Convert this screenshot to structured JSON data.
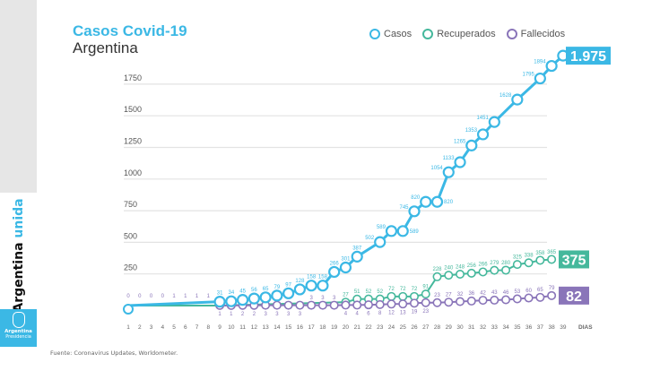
{
  "branding": {
    "slogan_part1": "Argentina",
    "slogan_part2": "unida",
    "badge_line1": "Argentina",
    "badge_line2": "Presidencia"
  },
  "source": "Fuente: Coronavirus Updates, Worldometer.",
  "colors": {
    "casos": "#3bb8e5",
    "recuperados": "#45b89c",
    "fallecidos": "#8a75b9"
  },
  "chart_data": {
    "type": "line",
    "title": "Casos Covid-19",
    "subtitle": "Argentina",
    "xlabel": "DIAS",
    "xlim": [
      1,
      39
    ],
    "ylim": [
      0,
      2000
    ],
    "yticks": [
      250,
      500,
      750,
      1000,
      1250,
      1500,
      1750
    ],
    "xticks": [
      1,
      2,
      3,
      4,
      5,
      6,
      7,
      8,
      9,
      10,
      11,
      12,
      13,
      14,
      15,
      16,
      17,
      18,
      19,
      20,
      21,
      22,
      23,
      24,
      25,
      26,
      27,
      28,
      29,
      30,
      31,
      32,
      33,
      34,
      35,
      36,
      37,
      38,
      39
    ],
    "grid": true,
    "legend": "top-right",
    "early_labels": {
      "x": [
        1,
        2,
        3,
        4,
        5,
        6,
        7,
        8
      ],
      "values": [
        0,
        0,
        0,
        0,
        1,
        1,
        1,
        1
      ]
    },
    "series": [
      {
        "name": "Casos",
        "key": "casos",
        "x": [
          1,
          9,
          10,
          11,
          12,
          13,
          14,
          15,
          16,
          17,
          18,
          19,
          20,
          21,
          23,
          24,
          25,
          26,
          27,
          28,
          29,
          30,
          31,
          32,
          33,
          35,
          37,
          38,
          39
        ],
        "y": [
          0,
          31,
          34,
          45,
          56,
          65,
          79,
          97,
          128,
          158,
          158,
          266,
          301,
          387,
          502,
          589,
          589,
          745,
          820,
          820,
          1054,
          1133,
          1265,
          1353,
          1451,
          1628,
          1795,
          1894,
          1975
        ],
        "labels": [
          "",
          "31",
          "34",
          "45",
          "56",
          "65",
          "79",
          "97",
          "128",
          "158",
          "158",
          "266",
          "301",
          "387",
          "502",
          "589",
          "589",
          "745",
          "820",
          "820",
          "1054",
          "1133",
          "1265",
          "1353",
          "1451",
          "1628",
          "1795",
          "1894",
          ""
        ],
        "final_value": "1.975"
      },
      {
        "name": "Recuperados",
        "key": "recuperados",
        "x": [
          1,
          9,
          20,
          21,
          22,
          23,
          24,
          25,
          26,
          27,
          28,
          29,
          30,
          31,
          32,
          33,
          34,
          35,
          36,
          37,
          38
        ],
        "y": [
          0,
          0,
          27,
          51,
          52,
          52,
          72,
          72,
          72,
          91,
          228,
          240,
          248,
          256,
          266,
          279,
          280,
          325,
          338,
          358,
          365
        ],
        "labels": [
          "",
          "",
          "27",
          "51",
          "52",
          "52",
          "72",
          "72",
          "72",
          "91",
          "228",
          "240",
          "248",
          "256",
          "266",
          "279",
          "280",
          "325",
          "338",
          "358",
          "365"
        ],
        "final_value": "375"
      },
      {
        "name": "Fallecidos",
        "key": "fallecidos",
        "x": [
          9,
          10,
          11,
          12,
          13,
          14,
          15,
          16,
          17,
          18,
          19,
          20,
          21,
          22,
          23,
          24,
          25,
          26,
          27,
          28,
          29,
          30,
          31,
          32,
          33,
          34,
          35,
          36,
          37,
          38
        ],
        "y": [
          1,
          1,
          2,
          2,
          3,
          3,
          3,
          3,
          3,
          3,
          3,
          4,
          4,
          6,
          8,
          12,
          13,
          19,
          23,
          23,
          27,
          32,
          36,
          42,
          43,
          46,
          53,
          60,
          65,
          79
        ],
        "labels": [
          "1",
          "1",
          "2",
          "2",
          "3",
          "3",
          "3",
          "3",
          "3",
          "3",
          "3",
          "4",
          "4",
          "6",
          "8",
          "12",
          "13",
          "19",
          "23",
          "23",
          "27",
          "32",
          "36",
          "42",
          "43",
          "46",
          "53",
          "60",
          "65",
          "79"
        ],
        "final_value": "82"
      }
    ]
  }
}
